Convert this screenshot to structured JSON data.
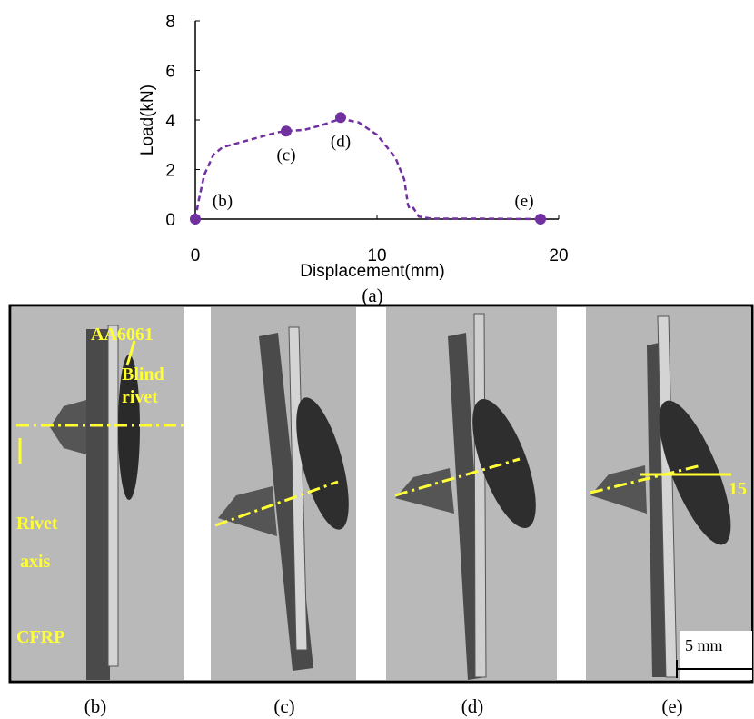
{
  "chart_data": {
    "type": "line",
    "x_label": "Displacement(mm)",
    "y_label": "Load(kN)",
    "xlim": [
      0,
      20
    ],
    "ylim": [
      0,
      8
    ],
    "xticks": [
      0,
      10,
      20
    ],
    "yticks": [
      0,
      2,
      4,
      6,
      8
    ],
    "x": [
      0,
      0.2,
      0.5,
      1,
      1.5,
      2.5,
      3.5,
      4.5,
      5,
      6,
      7,
      8,
      9,
      10,
      11,
      11.5,
      11.7,
      11.8,
      12,
      12.3,
      13,
      15,
      19
    ],
    "series": [
      {
        "color": "#7030a0",
        "values": [
          0,
          0.8,
          1.8,
          2.6,
          2.9,
          3.1,
          3.3,
          3.5,
          3.55,
          3.6,
          3.8,
          4.05,
          3.9,
          3.4,
          2.5,
          1.6,
          0.6,
          0.4,
          0.45,
          0.1,
          0.02,
          0.02,
          0
        ]
      }
    ],
    "markers": {
      "color": "#7030a0",
      "x": [
        0,
        5,
        8,
        19
      ],
      "values": [
        0,
        3.55,
        4.1,
        0
      ],
      "labels": [
        "(b)",
        "(c)",
        "(d)",
        "(e)"
      ]
    },
    "panel_label": "(a)"
  },
  "photos": {
    "labels": [
      "(b)",
      "(c)",
      "(d)",
      "(e)"
    ],
    "annotations": {
      "plate": "AA6061",
      "blind_1": "Blind",
      "blind_2": "rivet",
      "axis_1": "Rivet",
      "axis_2": "axis",
      "cfrp": "CFRP",
      "angle": "15",
      "scale": "5 mm"
    }
  }
}
